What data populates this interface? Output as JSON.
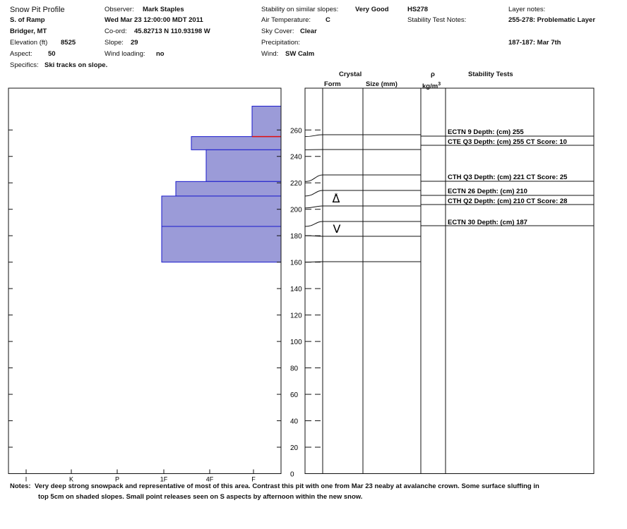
{
  "header": {
    "title": "Snow Pit Profile",
    "location": "S. of Ramp",
    "region": "Bridger, MT",
    "elevation_label": "Elevation (ft)",
    "elevation": "8525",
    "aspect_label": "Aspect:",
    "aspect": "50",
    "specifics_label": "Specifics:",
    "specifics": "Ski tracks on slope.",
    "observer_label": "Observer:",
    "observer": "Mark Staples",
    "datetime": "Wed Mar 23 12:00:00 MDT 2011",
    "coord_label": "Co-ord:",
    "coord": "45.82713 N 110.93198 W",
    "slope_label": "Slope:",
    "slope": "29",
    "wind_loading_label": "Wind loading:",
    "wind_loading": "no",
    "stability_label": "Stability on similar slopes:",
    "stability": "Very Good",
    "air_temp_label": "Air Temperature:",
    "air_temp": "C",
    "sky_label": "Sky Cover:",
    "sky": "Clear",
    "precip_label": "Precipitation:",
    "wind_label": "Wind:",
    "wind": "SW Calm",
    "hs": "HS278",
    "stability_notes_label": "Stability Test Notes:",
    "layer_notes_label": "Layer notes:",
    "layer_note_1": "255-278: Problematic Layer",
    "layer_note_2": "187-187: Mar 7th"
  },
  "columns": {
    "crystal": "Crystal",
    "form": "Form",
    "size": "Size (mm)",
    "rho": "ρ",
    "rho_unit": "kg/m",
    "stability_tests": "Stability Tests"
  },
  "notes": {
    "label": "Notes:",
    "line1": "Very deep strong snowpack and representative of most of this area. Contrast this pit with one from Mar 23 neaby at avalanche crown.  Some surface sluffing in",
    "line2": "top 5cm on shaded slopes.  Small point releases seen on S aspects by afternoon within the new snow."
  },
  "chart_data": {
    "type": "bar",
    "y_range": [
      0,
      278
    ],
    "y_ticks": [
      0,
      20,
      40,
      60,
      80,
      100,
      120,
      140,
      160,
      180,
      200,
      220,
      240,
      260,
      278
    ],
    "hardness_scale": [
      "I",
      "K",
      "P",
      "1F",
      "4F",
      "F"
    ],
    "hardness_layers": [
      {
        "bottom": 255,
        "top": 278,
        "hardness": "F+"
      },
      {
        "bottom": 245,
        "top": 255,
        "hardness": "4F+"
      },
      {
        "bottom": 221,
        "top": 245,
        "hardness": "4F"
      },
      {
        "bottom": 210,
        "top": 221,
        "hardness": "4F-"
      },
      {
        "bottom": 160,
        "top": 210,
        "hardness": "1F"
      }
    ],
    "layer_boundaries": [
      255,
      245,
      221,
      210,
      201,
      187,
      180,
      160
    ],
    "problem_layer_depth": 255,
    "grain_forms": [
      {
        "depth": 210,
        "symbol": "Δ",
        "name": "faceted-rounded-crystal"
      },
      {
        "depth": 187,
        "symbol": "V",
        "name": "depth-hoar"
      }
    ],
    "stability_tests": [
      {
        "depth": 255,
        "text": "ECTN 9   Depth: (cm) 255"
      },
      {
        "depth": 255,
        "text": "CTE Q3 Depth: (cm) 255 CT Score: 10"
      },
      {
        "depth": 221,
        "text": "CTH Q3 Depth: (cm) 221 CT Score: 25"
      },
      {
        "depth": 210,
        "text": "ECTN 26   Depth: (cm) 210"
      },
      {
        "depth": 210,
        "text": "CTH Q2 Depth: (cm) 210 CT Score: 28"
      },
      {
        "depth": 187,
        "text": "ECTN 30   Depth: (cm) 187"
      }
    ]
  },
  "colors": {
    "hardness_fill": "#9b9bd8",
    "hardness_stroke": "#1a1acc",
    "problem_line": "#e01010",
    "line": "#111111"
  }
}
